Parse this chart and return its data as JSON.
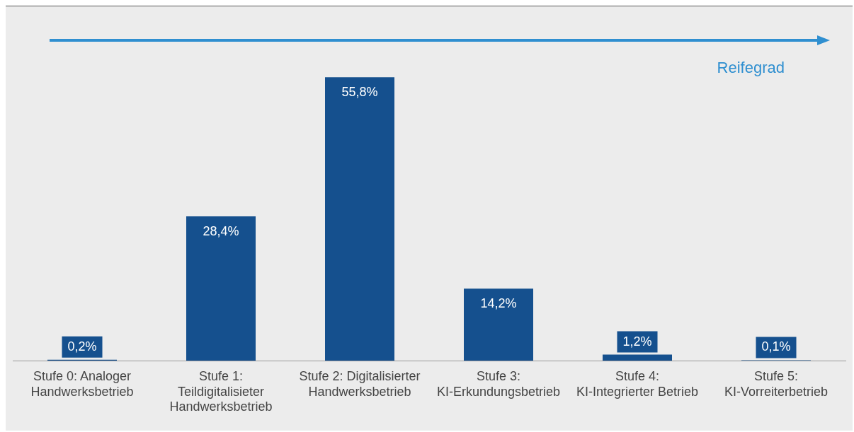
{
  "chart_data": {
    "type": "bar",
    "categories": [
      "Stufe 0: Analoger Handwerksbetrieb",
      "Stufe 1: Teildigitalisieter Handwerksbetrieb",
      "Stufe 2: Digitalisierter Handwerksbetrieb",
      "Stufe 3: KI-Erkundungsbetrieb",
      "Stufe 4: KI-Integrierter Betrieb",
      "Stufe 5: KI-Vorreiterbetrieb"
    ],
    "values": [
      0.2,
      28.4,
      55.8,
      14.2,
      1.2,
      0.1
    ],
    "value_labels": [
      "0,2%",
      "28,4%",
      "55,8%",
      "14,2%",
      "1,2%",
      "0,1%"
    ],
    "color": "#15508e",
    "annotations": [
      "Reifegrad"
    ],
    "grid": false,
    "legend": false
  }
}
